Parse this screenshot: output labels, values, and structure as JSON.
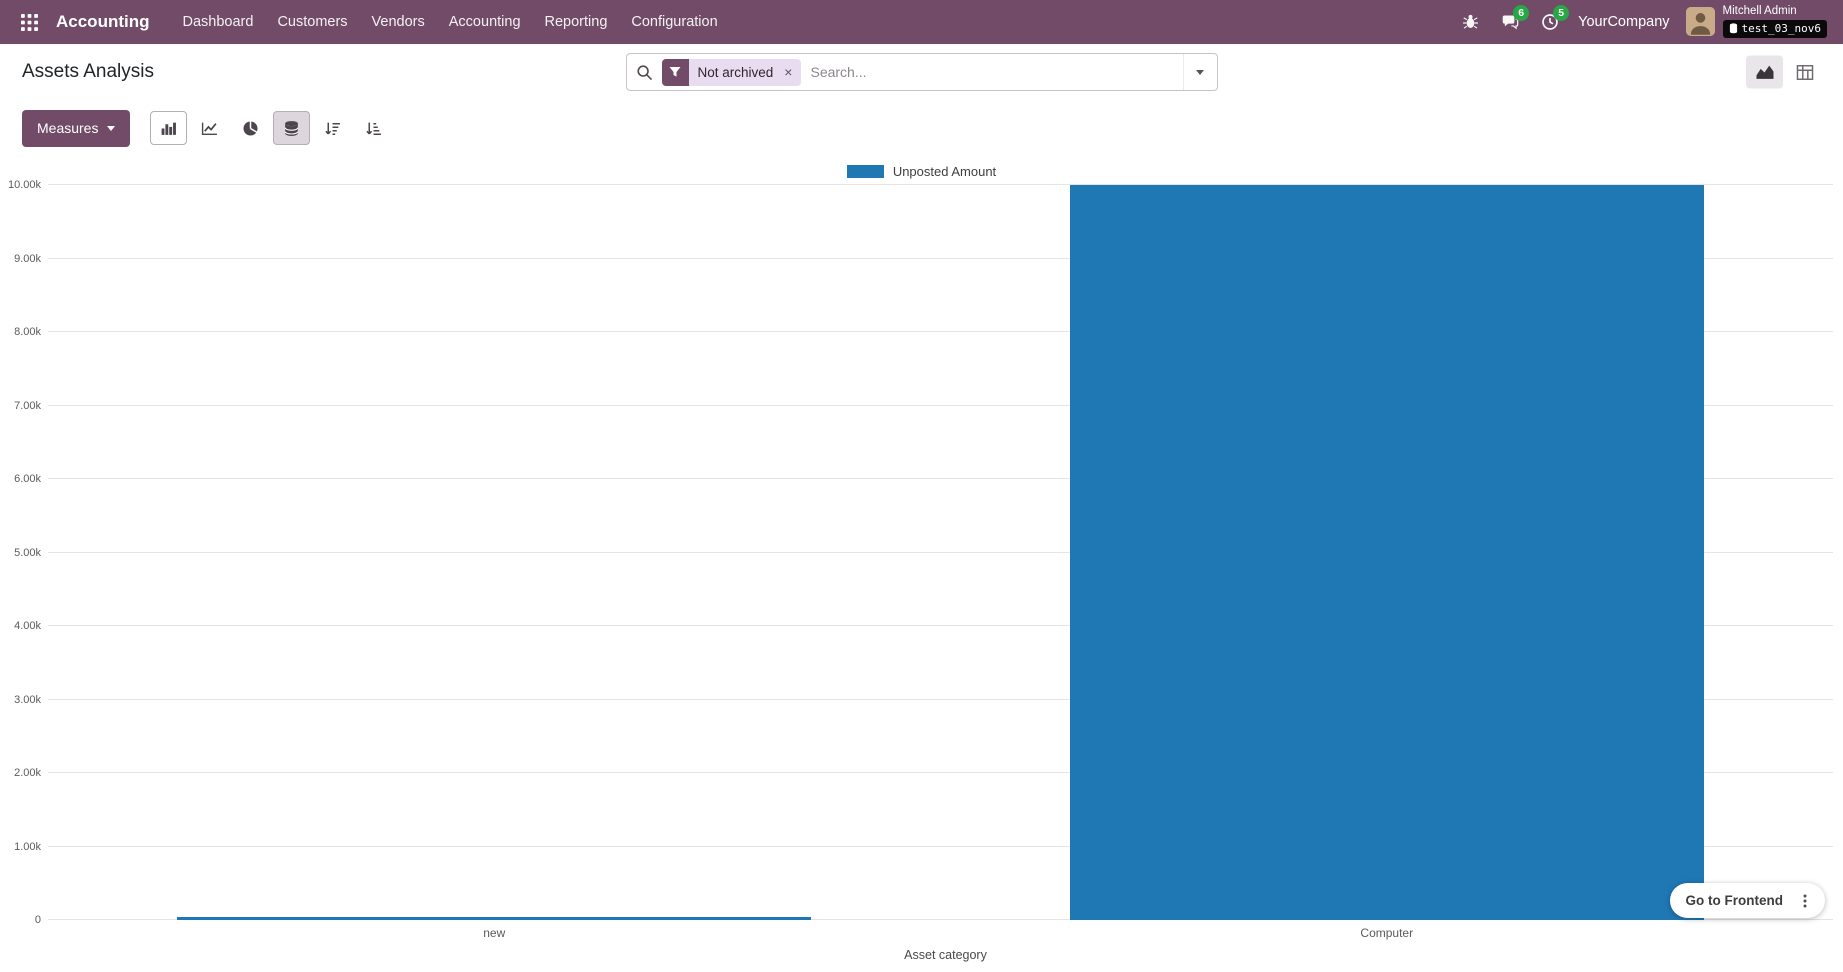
{
  "colors": {
    "brand": "#714B67",
    "badge_green": "#28a745",
    "chart_bar": "#1f77b4"
  },
  "topbar": {
    "app_name": "Accounting",
    "menu_items": [
      "Dashboard",
      "Customers",
      "Vendors",
      "Accounting",
      "Reporting",
      "Configuration"
    ],
    "badges": {
      "messages": "6",
      "activities": "5"
    },
    "company": "YourCompany",
    "user_name": "Mitchell Admin",
    "database": "test_03_nov6"
  },
  "control_panel": {
    "title": "Assets Analysis",
    "search": {
      "filter_chip": "Not archived",
      "remove_symbol": "×",
      "placeholder": "Search..."
    }
  },
  "toolbar": {
    "measures_label": "Measures"
  },
  "chart_data": {
    "type": "bar",
    "title": "",
    "categories": [
      "new",
      "Computer"
    ],
    "series": [
      {
        "name": "Unposted Amount",
        "values": [
          35,
          10000
        ]
      }
    ],
    "xlabel": "Asset category",
    "ylabel": "",
    "ylim": [
      0,
      10000
    ],
    "yticks": [
      "0",
      "1.00k",
      "2.00k",
      "3.00k",
      "4.00k",
      "5.00k",
      "6.00k",
      "7.00k",
      "8.00k",
      "9.00k",
      "10.00k"
    ],
    "legend_position": "top",
    "grid": true
  },
  "footer": {
    "go_to_frontend": "Go to Frontend"
  }
}
